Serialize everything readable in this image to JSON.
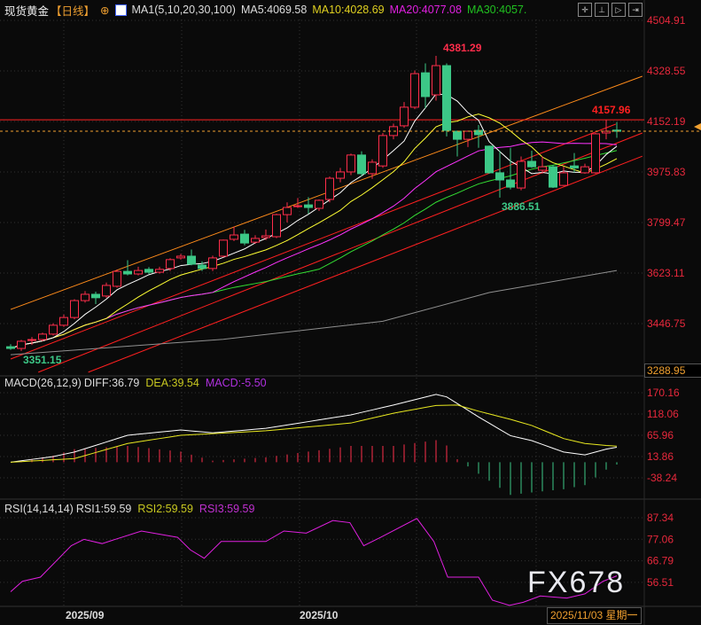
{
  "header": {
    "symbol": "现货黄金",
    "period": "【日线】",
    "ma_params": "MA1(5,10,20,30,100)",
    "ma5": "MA5:4069.58",
    "ma10": "MA10:4028.69",
    "ma20": "MA20:4077.08",
    "ma30": "MA30:4057.",
    "toolbar_icons": [
      "crosshair-icon",
      "range-icon",
      "play-icon",
      "next-icon"
    ]
  },
  "colors": {
    "up": "#ff2d4b",
    "down": "#3cc887",
    "ma5": "#ffffff",
    "ma10": "#ffff33",
    "ma20": "#ff33ff",
    "ma30": "#33dd33",
    "ma100": "#909090",
    "channel": "#ff8c1a",
    "trend": "#ff2020",
    "axis": "#e8283c"
  },
  "macd_header": {
    "name": "MACD(26,12,9)",
    "diff": "DIFF:36.79",
    "dea": "DEA:39.54",
    "macd": "MACD:-5.50"
  },
  "rsi_header": {
    "name": "RSI(14,14,14)",
    "rsi1": "RSI1:59.59",
    "rsi2": "RSI2:59.59",
    "rsi3": "RSI3:59.59"
  },
  "watermark": "FX678",
  "cursor": {
    "date": "2025/11/03 星期一",
    "value": "3288.95"
  },
  "chart_data": [
    {
      "type": "candlestick",
      "title": "现货黄金 日线",
      "ylim": [
        3288.95,
        4504.91
      ],
      "y_ticks": [
        "4504.91",
        "4328.55",
        "4152.19",
        "3975.83",
        "3799.47",
        "3623.11",
        "3446.75"
      ],
      "x_labels": [
        {
          "index": 7,
          "label": "2025/09"
        },
        {
          "index": 29,
          "label": "2025/10"
        }
      ],
      "ohlc": [
        [
          3366,
          3375,
          3355,
          3360
        ],
        [
          3360,
          3390,
          3351.15,
          3385
        ],
        [
          3388,
          3400,
          3372,
          3391
        ],
        [
          3391,
          3415,
          3385,
          3410
        ],
        [
          3410,
          3448,
          3405,
          3441
        ],
        [
          3441,
          3478,
          3435,
          3468
        ],
        [
          3468,
          3532,
          3462,
          3527
        ],
        [
          3527,
          3560,
          3520,
          3549
        ],
        [
          3549,
          3558,
          3515,
          3537
        ],
        [
          3543,
          3590,
          3537,
          3580
        ],
        [
          3577,
          3635,
          3572,
          3629
        ],
        [
          3629,
          3668,
          3615,
          3620
        ],
        [
          3620,
          3645,
          3615,
          3632
        ],
        [
          3636,
          3644,
          3620,
          3626
        ],
        [
          3626,
          3645,
          3621,
          3636
        ],
        [
          3639,
          3675,
          3630,
          3670
        ],
        [
          3676,
          3690,
          3670,
          3682
        ],
        [
          3682,
          3705,
          3650,
          3654
        ],
        [
          3651,
          3664,
          3630,
          3639
        ],
        [
          3639,
          3684,
          3630,
          3676
        ],
        [
          3682,
          3740,
          3678,
          3738
        ],
        [
          3741,
          3785,
          3735,
          3756
        ],
        [
          3759,
          3774,
          3720,
          3728
        ],
        [
          3731,
          3755,
          3725,
          3744
        ],
        [
          3747,
          3775,
          3738,
          3753
        ],
        [
          3750,
          3830,
          3745,
          3827
        ],
        [
          3827,
          3870,
          3800,
          3852
        ],
        [
          3855,
          3885,
          3850,
          3858
        ],
        [
          3861,
          3888,
          3830,
          3852
        ],
        [
          3849,
          3880,
          3840,
          3877
        ],
        [
          3880,
          3960,
          3870,
          3954
        ],
        [
          3954,
          3990,
          3940,
          3976
        ],
        [
          3976,
          4040,
          3965,
          4035
        ],
        [
          4035,
          4048,
          3960,
          3970
        ],
        [
          3970,
          4020,
          3952,
          4010
        ],
        [
          3997,
          4112,
          3990,
          4103
        ],
        [
          4103,
          4145,
          4090,
          4134
        ],
        [
          4137,
          4220,
          4130,
          4202
        ],
        [
          4202,
          4330,
          4195,
          4319
        ],
        [
          4322,
          4355,
          4198,
          4239
        ],
        [
          4245,
          4381.29,
          4225,
          4347
        ],
        [
          4347,
          4355,
          4100,
          4121
        ],
        [
          4118,
          4120,
          4030,
          4090
        ],
        [
          4090,
          4120,
          4063,
          4118
        ],
        [
          4121,
          4140,
          4060,
          4106
        ],
        [
          4066,
          4068,
          3970,
          3973
        ],
        [
          3973,
          4050,
          3886.51,
          3948
        ],
        [
          3948,
          4060,
          3915,
          3923
        ],
        [
          3920,
          4030,
          3912,
          4013
        ],
        [
          4013,
          4050,
          3990,
          3994
        ],
        [
          3982,
          4030,
          3970,
          3994
        ],
        [
          3994,
          4000,
          3920,
          3923
        ],
        [
          3929,
          3995,
          3927,
          3973
        ],
        [
          3997,
          4042,
          3974,
          3990
        ],
        [
          3973,
          4005,
          3970,
          3994
        ],
        [
          3973,
          4112,
          3970,
          4109
        ],
        [
          4112,
          4157.96,
          4090,
          4118
        ],
        [
          4122,
          4150,
          4095,
          4118
        ]
      ],
      "ma100": [
        [
          0,
          3338
        ],
        [
          20,
          3392
        ],
        [
          35,
          3455
        ],
        [
          45,
          3555
        ],
        [
          57,
          3632
        ]
      ],
      "trendlines": [
        {
          "color": "channel",
          "points": [
            [
              0,
              3496
            ],
            [
              59.4,
              4310
            ]
          ]
        },
        {
          "color": "trend",
          "points": [
            [
              0,
              3323
            ],
            [
              56.9,
              4143
            ]
          ]
        },
        {
          "color": "trend",
          "points": [
            [
              2.6,
              3277
            ],
            [
              59.4,
              4112
            ]
          ]
        },
        {
          "color": "trend",
          "points": [
            [
              7.3,
              3277
            ],
            [
              59.4,
              4031
            ]
          ]
        }
      ],
      "horizontal_line": {
        "value": 4157.96,
        "label": "4157.96"
      },
      "current_price": 4118,
      "annotations": [
        {
          "index": 40,
          "value": 4381.29,
          "label": "4381.29",
          "pos": "above"
        },
        {
          "index": 46,
          "value": 3886.51,
          "label": "3886.51",
          "pos": "below"
        },
        {
          "index": 1,
          "value": 3351.15,
          "label": "3351.15",
          "pos": "below"
        }
      ]
    },
    {
      "type": "line",
      "title": "MACD(26,12,9)",
      "ylim": [
        -38.24,
        170.16
      ],
      "y_ticks": [
        "170.16",
        "118.06",
        "65.96",
        "13.86",
        "-38.24"
      ],
      "diff": [
        [
          0,
          0
        ],
        [
          4,
          14
        ],
        [
          6,
          25
        ],
        [
          11,
          66
        ],
        [
          16,
          79
        ],
        [
          19,
          72
        ],
        [
          24,
          83
        ],
        [
          32,
          116
        ],
        [
          36,
          140
        ],
        [
          40,
          166
        ],
        [
          41,
          160
        ],
        [
          44,
          111
        ],
        [
          47,
          65
        ],
        [
          49,
          53
        ],
        [
          52,
          25
        ],
        [
          54,
          18
        ],
        [
          56,
          32
        ],
        [
          57,
          36.79
        ]
      ],
      "dea": [
        [
          0,
          0
        ],
        [
          6,
          9
        ],
        [
          11,
          46
        ],
        [
          16,
          66
        ],
        [
          24,
          77
        ],
        [
          32,
          96
        ],
        [
          36,
          120
        ],
        [
          40,
          139
        ],
        [
          42,
          140
        ],
        [
          44,
          125
        ],
        [
          47,
          105
        ],
        [
          49,
          90
        ],
        [
          52,
          58
        ],
        [
          54,
          46
        ],
        [
          56,
          41
        ],
        [
          57,
          39.54
        ]
      ]
    },
    {
      "type": "line",
      "title": "RSI(14,14,14)",
      "ylim": [
        45,
        90
      ],
      "y_ticks": [
        "87.34",
        "77.06",
        "66.79",
        "56.51"
      ],
      "rsi": [
        [
          0,
          52
        ],
        [
          1.1,
          57
        ],
        [
          2.8,
          59
        ],
        [
          5.7,
          74
        ],
        [
          6.9,
          77
        ],
        [
          8.6,
          75
        ],
        [
          12.3,
          81
        ],
        [
          15.7,
          78
        ],
        [
          16.9,
          72
        ],
        [
          18.2,
          68
        ],
        [
          19.8,
          76
        ],
        [
          24,
          76
        ],
        [
          25.7,
          81
        ],
        [
          27.8,
          80
        ],
        [
          30.3,
          86
        ],
        [
          31.9,
          85
        ],
        [
          33.2,
          74
        ],
        [
          34.8,
          78
        ],
        [
          38.2,
          87
        ],
        [
          39.8,
          76
        ],
        [
          41.1,
          59
        ],
        [
          44,
          59
        ],
        [
          45.3,
          48
        ],
        [
          46.9,
          45.5
        ],
        [
          48.2,
          47
        ],
        [
          49.8,
          50
        ],
        [
          52.3,
          49
        ],
        [
          54,
          51
        ],
        [
          55.7,
          57
        ],
        [
          57,
          59.59
        ]
      ]
    }
  ]
}
